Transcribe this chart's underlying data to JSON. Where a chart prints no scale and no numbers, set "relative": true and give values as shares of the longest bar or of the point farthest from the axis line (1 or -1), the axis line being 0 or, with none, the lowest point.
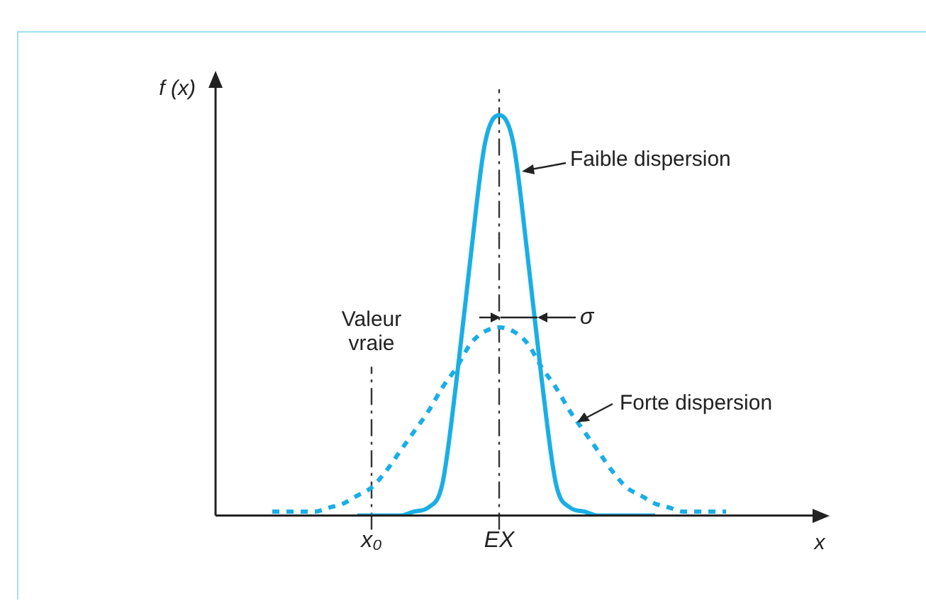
{
  "chart_data": {
    "type": "line",
    "relative": true,
    "xlabel": "x",
    "ylabel": "f (x)",
    "categories": [
      null,
      null,
      null,
      null,
      null,
      null,
      null,
      null,
      null,
      null,
      null,
      "x₀",
      null,
      null,
      null,
      null,
      null,
      null,
      null,
      null,
      "EX",
      null,
      null,
      null,
      null,
      null,
      null,
      null,
      null,
      null,
      null,
      null,
      null,
      null,
      null,
      null,
      null,
      null,
      null,
      null,
      null,
      null,
      null
    ],
    "series": [
      {
        "color": "#1aaee5",
        "line_style": "solid",
        "values": [
          null,
          null,
          null,
          null,
          null,
          null,
          null,
          null,
          null,
          null,
          0,
          0,
          0,
          0,
          0.01,
          0.02,
          0.08,
          0.34,
          0.65,
          0.93,
          1,
          0.93,
          0.65,
          0.34,
          0.08,
          0.02,
          0.01,
          0,
          0,
          0,
          0,
          0,
          null,
          null,
          null,
          null,
          null,
          null,
          null,
          null,
          null,
          null,
          null
        ]
      },
      {
        "color": "#1aaee5",
        "line_style": "dotted",
        "values": [
          null,
          null,
          null,
          null,
          0.01,
          0.01,
          0.01,
          0.01,
          0.02,
          0.03,
          0.05,
          0.07,
          0.11,
          0.16,
          0.21,
          0.26,
          0.32,
          0.37,
          0.43,
          0.46,
          0.47,
          0.46,
          0.43,
          0.37,
          0.32,
          0.26,
          0.21,
          0.16,
          0.11,
          0.07,
          0.05,
          0.03,
          0.02,
          0.01,
          0.01,
          0.01,
          0.01,
          null,
          null,
          null,
          null,
          null,
          null
        ]
      }
    ],
    "ref_lines": [
      {
        "axis": "x",
        "value": "x₀",
        "label": "Valeur vraie",
        "line_style": "dashdot",
        "color": "#333333"
      },
      {
        "axis": "x",
        "value": "EX",
        "line_style": "dashdot",
        "color": "#333333"
      }
    ],
    "annotations": [
      "Faible dispersion",
      "Forte dispersion",
      "σ"
    ],
    "marker": "none",
    "grid": false,
    "legend": false
  }
}
